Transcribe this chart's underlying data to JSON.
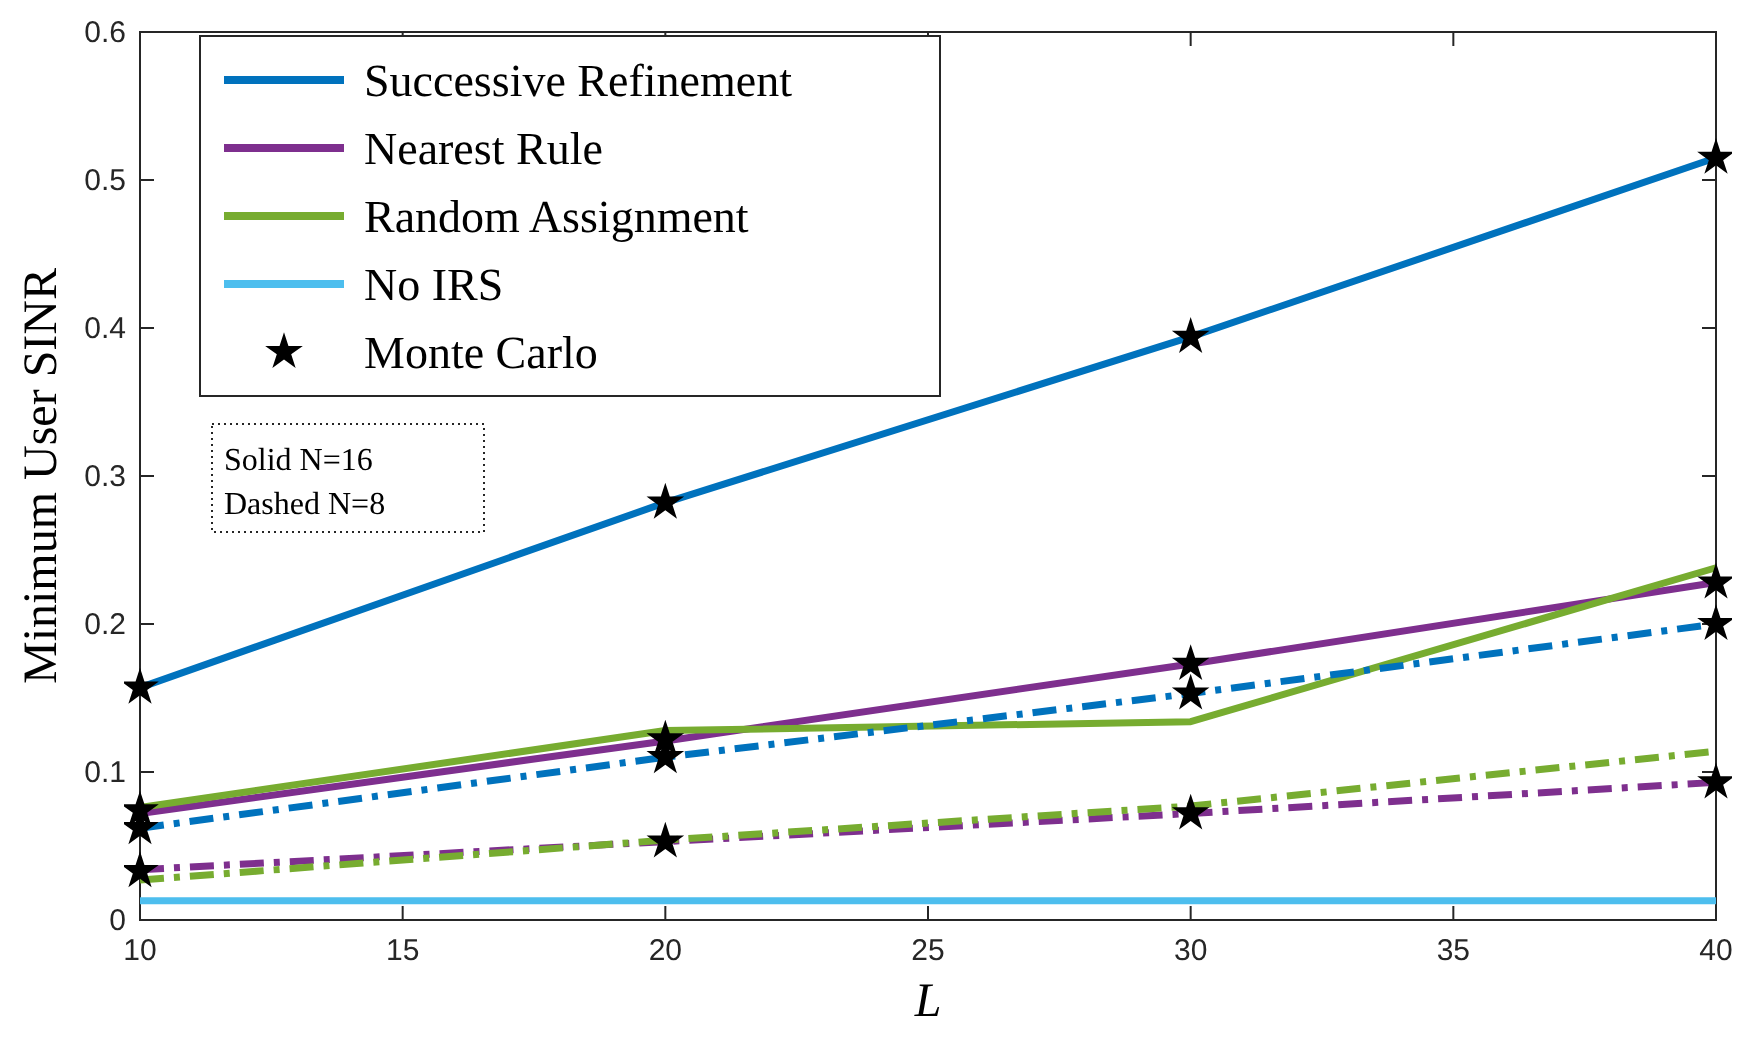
{
  "chart_data": {
    "type": "line",
    "xlabel": "L",
    "ylabel": "Minimum User SINR",
    "x": [
      10,
      20,
      30,
      40
    ],
    "xlim": [
      10,
      40
    ],
    "xticks": [
      10,
      15,
      20,
      25,
      30,
      35,
      40
    ],
    "ylim": [
      0,
      0.6
    ],
    "yticks": [
      0,
      0.1,
      0.2,
      0.3,
      0.4,
      0.5,
      0.6
    ],
    "grid": false,
    "legend": "top left",
    "marker": "none",
    "annotations": [
      "Solid N=16",
      "Dashed N=8"
    ],
    "series": [
      {
        "name": "Successive Refinement",
        "color": "#0072bd",
        "line_style": "solid",
        "values": [
          0.157,
          0.282,
          0.394,
          0.515
        ]
      },
      {
        "name": "Nearest Rule",
        "color": "#7e2f8e",
        "line_style": "solid",
        "values": [
          0.072,
          0.121,
          0.173,
          0.228
        ]
      },
      {
        "name": "Random Assignment",
        "color": "#77ac30",
        "line_style": "solid",
        "values": [
          0.076,
          0.128,
          0.134,
          0.238
        ]
      },
      {
        "name": "No IRS",
        "color": "#4dbeee",
        "line_style": "solid",
        "values": [
          0.013,
          0.013,
          0.013,
          0.013
        ]
      },
      {
        "color": "#0072bd",
        "line_style": "dashed",
        "values": [
          0.062,
          0.11,
          0.153,
          0.2
        ]
      },
      {
        "color": "#7e2f8e",
        "line_style": "dashed",
        "values": [
          0.034,
          0.053,
          0.072,
          0.093
        ]
      },
      {
        "color": "#77ac30",
        "line_style": "dashed",
        "values": [
          0.027,
          0.054,
          0.077,
          0.114
        ]
      },
      {
        "name": "Monte Carlo",
        "type": "scatter",
        "marker": "star",
        "color": "#000000",
        "x": [
          10,
          10,
          10,
          10,
          20,
          20,
          20,
          20,
          30,
          30,
          30,
          30,
          40,
          40,
          40,
          40
        ],
        "values": [
          0.157,
          0.074,
          0.062,
          0.033,
          0.282,
          0.122,
          0.11,
          0.053,
          0.394,
          0.173,
          0.153,
          0.072,
          0.515,
          0.228,
          0.2,
          0.093
        ]
      }
    ]
  }
}
